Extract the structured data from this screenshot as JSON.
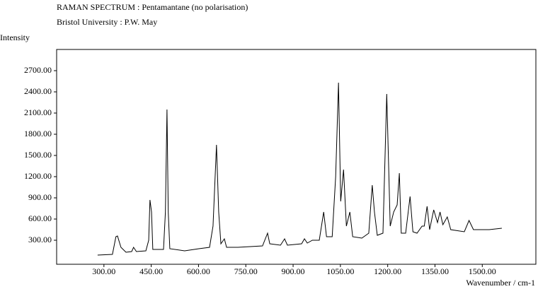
{
  "chart_data": {
    "type": "line",
    "title": "RAMAN SPECTRUM : Pentamantane (no polarisation)",
    "subtitle": "Bristol University : P.W. May",
    "ylabel": "Intensity",
    "xlabel": "Wavenumber / cm-1",
    "color": "#000000",
    "xlim": [
      150,
      1670
    ],
    "ylim": [
      -40,
      3000
    ],
    "xticks": [
      {
        "value": 300,
        "label": "300.00"
      },
      {
        "value": 450,
        "label": "450.00"
      },
      {
        "value": 600,
        "label": "600.00"
      },
      {
        "value": 750,
        "label": "750.00"
      },
      {
        "value": 900,
        "label": "900.00"
      },
      {
        "value": 1050,
        "label": "1050.00"
      },
      {
        "value": 1200,
        "label": "1200.00"
      },
      {
        "value": 1350,
        "label": "1350.00"
      },
      {
        "value": 1500,
        "label": "1500.00"
      }
    ],
    "yticks": [
      {
        "value": 300,
        "label": "300.00"
      },
      {
        "value": 600,
        "label": "600.00"
      },
      {
        "value": 900,
        "label": "900.00"
      },
      {
        "value": 1200,
        "label": "1200.00"
      },
      {
        "value": 1500,
        "label": "1500.00"
      },
      {
        "value": 1800,
        "label": "1800.00"
      },
      {
        "value": 2100,
        "label": "2100.00"
      },
      {
        "value": 2400,
        "label": "2400.00"
      },
      {
        "value": 2700,
        "label": "2700.00"
      }
    ],
    "x": [
      280,
      327,
      338,
      343,
      354,
      370,
      388,
      394,
      403,
      433,
      442,
      446,
      451,
      455,
      489,
      495,
      500,
      504,
      509,
      556,
      601,
      635,
      646,
      657,
      664,
      671,
      682,
      689,
      725,
      803,
      819,
      826,
      860,
      873,
      882,
      927,
      936,
      945,
      961,
      983,
      997,
      1006,
      1024,
      1035,
      1044,
      1051,
      1060,
      1069,
      1080,
      1089,
      1118,
      1140,
      1151,
      1158,
      1167,
      1185,
      1197,
      1208,
      1219,
      1230,
      1237,
      1243,
      1257,
      1271,
      1280,
      1293,
      1309,
      1316,
      1325,
      1333,
      1346,
      1358,
      1366,
      1375,
      1389,
      1400,
      1443,
      1458,
      1472,
      1522,
      1562
    ],
    "values": [
      90,
      100,
      350,
      360,
      200,
      130,
      140,
      200,
      140,
      150,
      300,
      870,
      700,
      170,
      170,
      700,
      2150,
      700,
      180,
      150,
      180,
      200,
      500,
      1650,
      700,
      250,
      320,
      200,
      200,
      220,
      400,
      250,
      230,
      320,
      230,
      250,
      320,
      260,
      300,
      300,
      700,
      350,
      350,
      1200,
      2530,
      850,
      1300,
      500,
      700,
      350,
      330,
      400,
      1080,
      700,
      370,
      400,
      2370,
      500,
      700,
      800,
      1250,
      400,
      400,
      920,
      420,
      400,
      500,
      500,
      780,
      450,
      730,
      550,
      700,
      520,
      630,
      450,
      420,
      580,
      450,
      450,
      470
    ]
  }
}
